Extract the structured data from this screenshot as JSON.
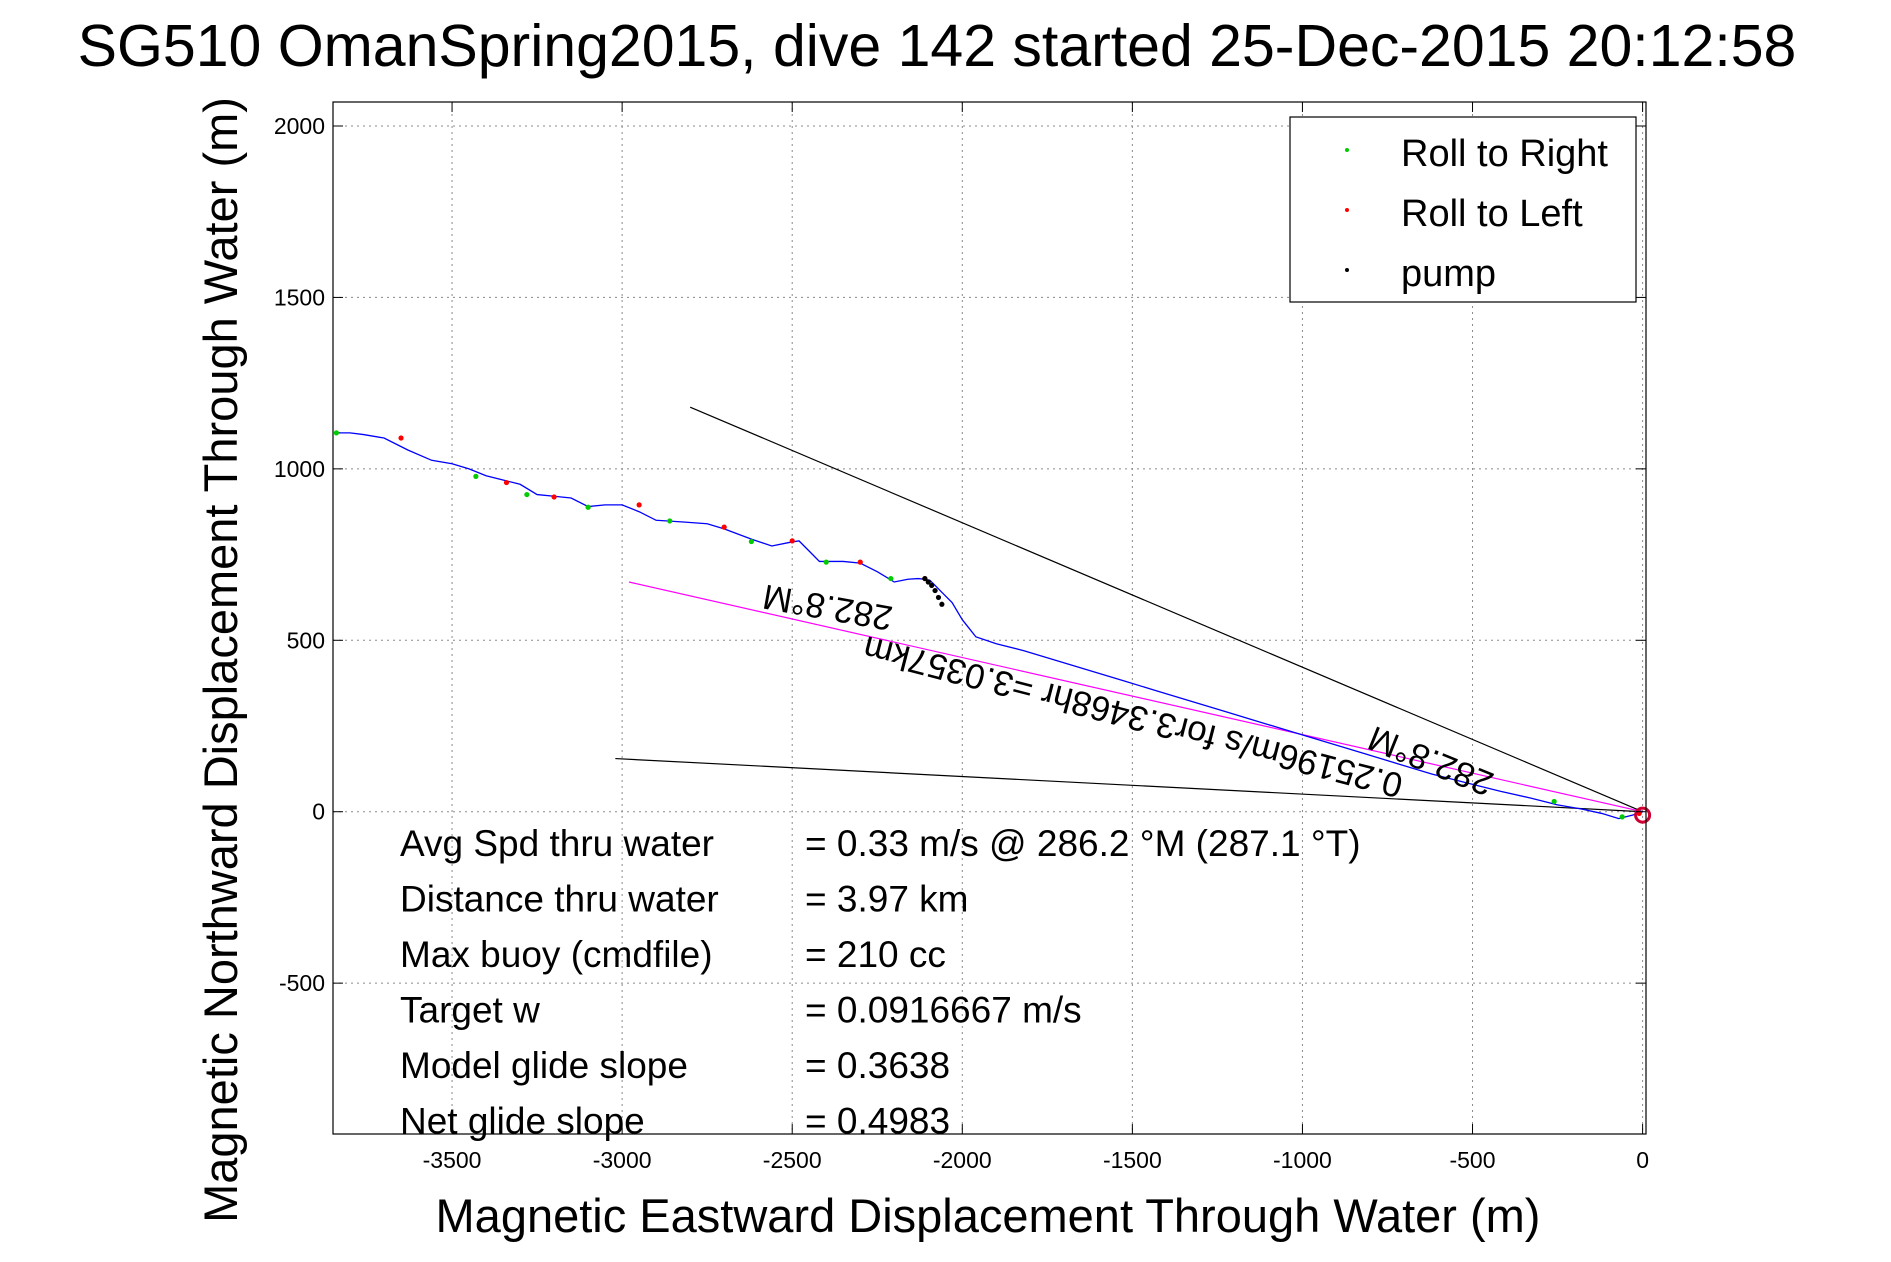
{
  "chart_data": {
    "type": "line",
    "title": "SG510 OmanSpring2015, dive 142 started 25-Dec-2015 20:12:58",
    "xlabel": "Magnetic Eastward Displacement Through Water (m)",
    "ylabel": "Magnetic Northward Displacement Through Water (m)",
    "xlim": [
      -3850,
      10
    ],
    "ylim": [
      -940,
      2070
    ],
    "xticks": [
      -3500,
      -3000,
      -2500,
      -2000,
      -1500,
      -1000,
      -500,
      0
    ],
    "yticks": [
      -500,
      0,
      500,
      1000,
      1500,
      2000
    ],
    "grid": true,
    "legend_position": "top-right",
    "legend": [
      {
        "label": "Roll to Right",
        "color": "#00cc00"
      },
      {
        "label": "Roll to Left",
        "color": "#ff0000"
      },
      {
        "label": "pump",
        "color": "#000000"
      }
    ],
    "series": [
      {
        "name": "track",
        "color": "#0000ff",
        "x": [
          0,
          -10,
          -30,
          -70,
          -120,
          -180,
          -250,
          -330,
          -420,
          -520,
          -620,
          -720,
          -820,
          -920,
          -1020,
          -1120,
          -1220,
          -1320,
          -1420,
          -1520,
          -1620,
          -1720,
          -1820,
          -1900,
          -1960,
          -2000,
          -2030,
          -2060,
          -2080,
          -2095,
          -2110,
          -2130,
          -2160,
          -2200,
          -2250,
          -2300,
          -2350,
          -2420,
          -2450,
          -2480,
          -2510,
          -2560,
          -2620,
          -2700,
          -2750,
          -2820,
          -2900,
          -2950,
          -3000,
          -3050,
          -3100,
          -3150,
          -3200,
          -3250,
          -3300,
          -3340,
          -3400,
          -3450,
          -3500,
          -3560,
          -3630,
          -3700,
          -3760,
          -3800,
          -3840
        ],
        "y": [
          0,
          -5,
          -10,
          -20,
          -5,
          8,
          20,
          40,
          60,
          85,
          110,
          140,
          170,
          200,
          230,
          260,
          290,
          320,
          350,
          380,
          410,
          440,
          470,
          490,
          510,
          560,
          610,
          640,
          660,
          675,
          678,
          680,
          678,
          670,
          700,
          725,
          730,
          730,
          760,
          790,
          785,
          775,
          795,
          825,
          840,
          845,
          850,
          875,
          895,
          895,
          890,
          915,
          920,
          925,
          955,
          965,
          980,
          1000,
          1015,
          1025,
          1055,
          1090,
          1100,
          1105,
          1105
        ]
      },
      {
        "name": "Roll to Right",
        "color": "#00cc00",
        "marker": "dot",
        "x": [
          -60,
          -260,
          -2210,
          -2400,
          -2620,
          -2860,
          -3100,
          -3280,
          -3430,
          -3840
        ],
        "y": [
          -15,
          30,
          680,
          728,
          788,
          848,
          888,
          925,
          978,
          1105
        ]
      },
      {
        "name": "Roll to Left",
        "color": "#ff0000",
        "marker": "dot",
        "x": [
          -10,
          -2110,
          -2300,
          -2500,
          -2700,
          -2950,
          -3200,
          -3340,
          -3650
        ],
        "y": [
          -5,
          680,
          728,
          790,
          830,
          895,
          918,
          960,
          1090
        ]
      },
      {
        "name": "pump",
        "color": "#000000",
        "marker": "dot",
        "x": [
          -2110,
          -2100,
          -2090,
          -2080,
          -2070,
          -2060
        ],
        "y": [
          680,
          670,
          660,
          645,
          625,
          605
        ]
      }
    ],
    "reference_lines": [
      {
        "x": [
          0,
          -2800
        ],
        "y": [
          0,
          1180
        ],
        "color": "#000000"
      },
      {
        "x": [
          0,
          -3020
        ],
        "y": [
          0,
          155
        ],
        "color": "#000000"
      },
      {
        "x": [
          0,
          -2980
        ],
        "y": [
          0,
          670
        ],
        "color": "#ff00ff"
      }
    ],
    "surface_marker": {
      "x": 0,
      "y": -10,
      "color": "#cc0033"
    },
    "annotations": [
      {
        "text": "282.8°M",
        "x": -2390,
        "y": 630,
        "rotation": 190
      },
      {
        "text": "0.25196m/s for3.3468hr =3.0357km",
        "x": -1490,
        "y": 310,
        "rotation": 194.5
      },
      {
        "text": "282.8°M",
        "x": -610,
        "y": 180,
        "rotation": 202
      }
    ],
    "stats": [
      {
        "label": "Avg Spd thru water",
        "value": "=  0.33 m/s @ 286.2 °M (287.1 °T)"
      },
      {
        "label": "Distance thru water",
        "value": "=  3.97 km"
      },
      {
        "label": "Max buoy (cmdfile)",
        "value": "= 210 cc"
      },
      {
        "label": "Target w",
        "value": "= 0.0916667 m/s"
      },
      {
        "label": "Model glide slope",
        "value": "= 0.3638"
      },
      {
        "label": "Net glide slope",
        "value": "= 0.4983"
      }
    ]
  }
}
